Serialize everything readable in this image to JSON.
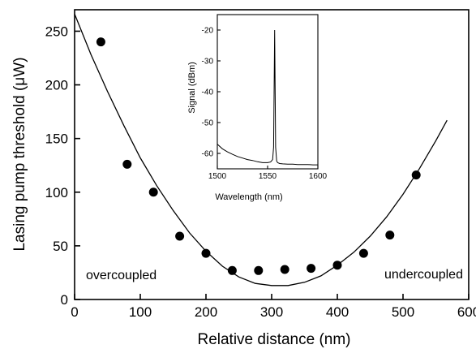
{
  "chart_data": [
    {
      "type": "scatter",
      "xlabel": "Relative distance (nm)",
      "ylabel": "Lasing pump threshold (μW)",
      "xlim": [
        0,
        600
      ],
      "ylim": [
        0,
        270
      ],
      "xticks": [
        0,
        100,
        200,
        300,
        400,
        500,
        600
      ],
      "yticks": [
        0,
        50,
        100,
        150,
        200,
        250
      ],
      "grid": false,
      "series": [
        {
          "style": "points",
          "x": [
            40,
            80,
            120,
            160,
            200,
            240,
            280,
            320,
            360,
            400,
            440,
            480,
            520
          ],
          "y": [
            240,
            126,
            100,
            59,
            43,
            27,
            27,
            28,
            29,
            32,
            43,
            60,
            116
          ]
        },
        {
          "style": "line",
          "x": [
            0,
            25,
            50,
            75,
            100,
            125,
            150,
            175,
            200,
            225,
            250,
            275,
            300,
            325,
            350,
            375,
            400,
            425,
            450,
            475,
            500,
            525,
            550,
            567
          ],
          "y": [
            266,
            228,
            194,
            162,
            132,
            106,
            83,
            62,
            45,
            31,
            21,
            15,
            13,
            13,
            16,
            22,
            32,
            44,
            59,
            77,
            98,
            122,
            148,
            167
          ]
        }
      ],
      "annotations": [
        "overcoupled",
        "undercoupled"
      ]
    },
    {
      "type": "line",
      "inset": true,
      "xlabel": "Wavelength (nm)",
      "ylabel": "Signal (dBm)",
      "xlim": [
        1500,
        1600
      ],
      "ylim": [
        -65,
        -15
      ],
      "xticks": [
        1500,
        1550,
        1600
      ],
      "yticks": [
        -20,
        -30,
        -40,
        -50,
        -60
      ],
      "grid": false,
      "series": [
        {
          "x": [
            1500,
            1505,
            1510,
            1515,
            1520,
            1525,
            1530,
            1535,
            1540,
            1545,
            1550,
            1553,
            1555,
            1556,
            1557,
            1558,
            1559,
            1560,
            1562,
            1565,
            1570,
            1575,
            1580,
            1585,
            1590,
            1595,
            1600
          ],
          "y": [
            -57,
            -58.5,
            -59.5,
            -60.3,
            -61,
            -61.5,
            -62,
            -62.3,
            -62.7,
            -63,
            -63,
            -62.8,
            -62,
            -58,
            -20,
            -58,
            -62.5,
            -63,
            -63.3,
            -63.4,
            -63.5,
            -63.5,
            -63.6,
            -63.6,
            -63.6,
            -63.7,
            -63.7
          ]
        }
      ]
    }
  ],
  "main": {
    "xlabel": "Relative distance (nm)",
    "ylabel": "Lasing pump threshold (μW)",
    "x_ticks": [
      "0",
      "100",
      "200",
      "300",
      "400",
      "500",
      "600"
    ],
    "y_ticks": [
      "0",
      "50",
      "100",
      "150",
      "200",
      "250"
    ],
    "annotation_left": "overcoupled",
    "annotation_right": "undercoupled"
  },
  "inset": {
    "xlabel": "Wavelength (nm)",
    "ylabel": "Signal (dBm)",
    "x_ticks": [
      "1500",
      "1550",
      "1600"
    ],
    "y_ticks": [
      "-20",
      "-30",
      "-40",
      "-50",
      "-60"
    ]
  }
}
